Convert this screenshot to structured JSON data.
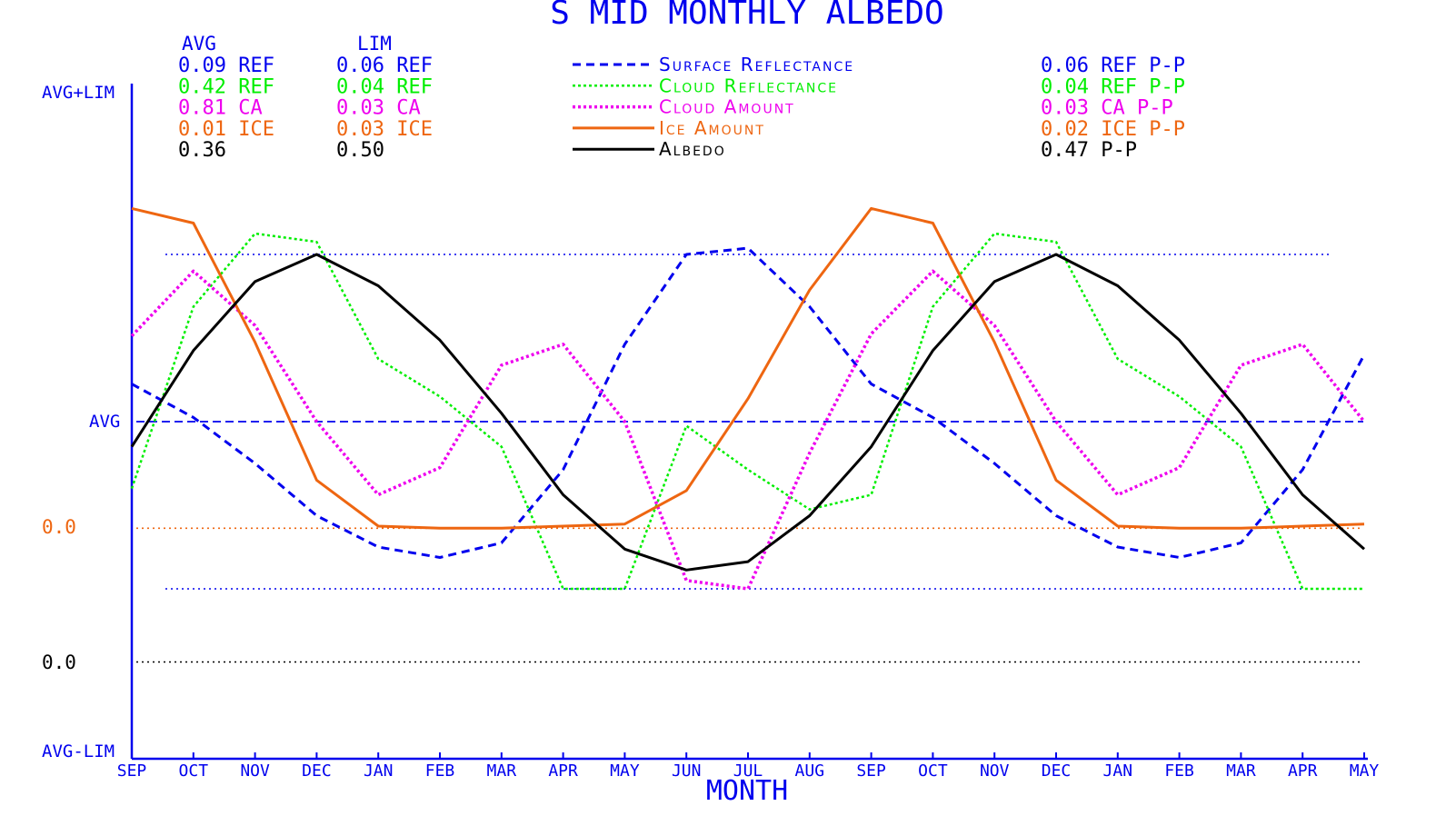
{
  "chart_data": {
    "type": "line",
    "title": "S MID MONTHLY ALBEDO",
    "xlabel": "MONTH",
    "ylabel": "",
    "y_axis_labels": {
      "top": "AVG+LIM",
      "avg": "AVG",
      "bottom": "AVG-LIM",
      "ice_zero": "0.0",
      "albedo_zero": "0.0"
    },
    "categories": [
      "SEP",
      "OCT",
      "NOV",
      "DEC",
      "JAN",
      "FEB",
      "MAR",
      "APR",
      "MAY",
      "JUN",
      "JUL",
      "AUG",
      "SEP",
      "OCT",
      "NOV",
      "DEC",
      "JAN",
      "FEB",
      "MAR",
      "APR",
      "MAY"
    ],
    "ylim": [
      -1,
      1
    ],
    "grid": false,
    "legend_position": "top-center",
    "stats_headers": {
      "avg": "AVG",
      "lim": "LIM"
    },
    "stats": [
      {
        "avg": "0.09 REF",
        "lim": "0.06 REF",
        "pp": "0.06 REF P-P",
        "color": "#0000ee"
      },
      {
        "avg": "0.42 REF",
        "lim": "0.04 REF",
        "pp": "0.04 REF P-P",
        "color": "#00ee00"
      },
      {
        "avg": "0.81 CA",
        "lim": "0.03 CA",
        "pp": "0.03 CA P-P",
        "color": "#ee00ee"
      },
      {
        "avg": "0.01 ICE",
        "lim": "0.03 ICE",
        "pp": "0.02 ICE P-P",
        "color": "#ee6611"
      },
      {
        "avg": "0.36",
        "lim": "0.50",
        "pp": "0.47 P-P",
        "color": "#000000"
      }
    ],
    "reference_lines": [
      {
        "name": "avg",
        "y": 0,
        "color": "#0000ee",
        "style": "dashed"
      },
      {
        "name": "upper",
        "y": 0.8,
        "color": "#0000ee",
        "style": "dotted"
      },
      {
        "name": "lower",
        "y": -0.8,
        "color": "#0000ee",
        "style": "dotted"
      },
      {
        "name": "ice-zero",
        "y": -0.51,
        "color": "#ee6611",
        "style": "dotted"
      },
      {
        "name": "albedo-zero",
        "y": -1.15,
        "color": "#000000",
        "style": "dotted"
      }
    ],
    "series": [
      {
        "name": "Surface Reflectance",
        "color": "#0000ee",
        "style": "dashed",
        "width": 3,
        "values": [
          0.18,
          0.02,
          -0.2,
          -0.45,
          -0.6,
          -0.65,
          -0.58,
          -0.23,
          0.37,
          0.8,
          0.83,
          0.55,
          0.18,
          0.02,
          -0.2,
          -0.45,
          -0.6,
          -0.65,
          -0.58,
          -0.23,
          0.32
        ]
      },
      {
        "name": "Cloud Reflectance",
        "color": "#00ee00",
        "style": "dotted",
        "width": 2.5,
        "values": [
          -0.32,
          0.55,
          0.9,
          0.86,
          0.3,
          0.12,
          -0.12,
          -0.8,
          -0.8,
          -0.02,
          -0.23,
          -0.42,
          -0.35,
          0.55,
          0.9,
          0.86,
          0.3,
          0.12,
          -0.12,
          -0.8,
          -0.8
        ]
      },
      {
        "name": "Cloud Amount",
        "color": "#ee00ee",
        "style": "dotted",
        "width": 3.5,
        "values": [
          0.41,
          0.72,
          0.46,
          0.0,
          -0.35,
          -0.22,
          0.27,
          0.37,
          0.0,
          -0.76,
          -0.8,
          -0.15,
          0.42,
          0.72,
          0.46,
          0.0,
          -0.35,
          -0.22,
          0.27,
          0.37,
          0.0
        ]
      },
      {
        "name": "Ice Amount",
        "color": "#ee6611",
        "style": "solid",
        "width": 3,
        "values": [
          1.02,
          0.95,
          0.38,
          -0.28,
          -0.5,
          -0.51,
          -0.51,
          -0.5,
          -0.49,
          -0.33,
          0.11,
          0.63,
          1.02,
          0.95,
          0.38,
          -0.28,
          -0.5,
          -0.51,
          -0.51,
          -0.5,
          -0.49
        ]
      },
      {
        "name": "Albedo",
        "color": "#000000",
        "style": "solid",
        "width": 3,
        "values": [
          -0.12,
          0.34,
          0.67,
          0.8,
          0.65,
          0.39,
          0.04,
          -0.35,
          -0.61,
          -0.71,
          -0.67,
          -0.45,
          -0.12,
          0.34,
          0.67,
          0.8,
          0.65,
          0.39,
          0.04,
          -0.35,
          -0.61
        ]
      }
    ]
  }
}
